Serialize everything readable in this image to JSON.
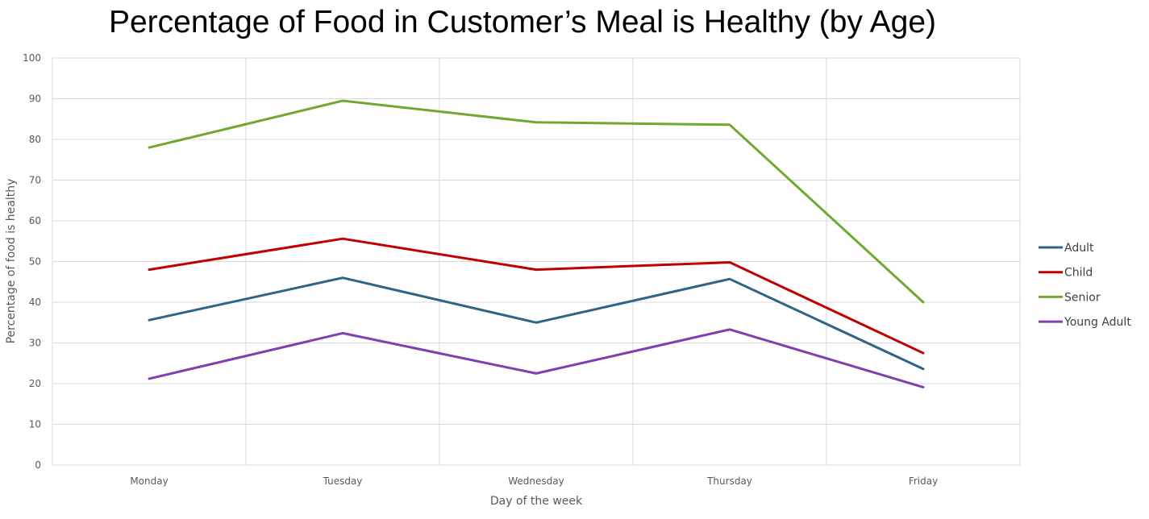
{
  "chart_data": {
    "type": "line",
    "title": "Percentage of Food in Customer’s Meal is Healthy (by Age)",
    "xlabel": "Day of the week",
    "ylabel": "Percentage of food is healthy",
    "categories": [
      "Monday",
      "Tuesday",
      "Wednesday",
      "Thursday",
      "Friday"
    ],
    "ylim": [
      0,
      100
    ],
    "yticks": [
      0,
      10,
      20,
      30,
      40,
      50,
      60,
      70,
      80,
      90,
      100
    ],
    "grid": true,
    "legend_position": "right",
    "series": [
      {
        "name": "Adult",
        "color": "#2E6584",
        "values": [
          35.6,
          46,
          35,
          45.7,
          23.6
        ]
      },
      {
        "name": "Child",
        "color": "#C00000",
        "values": [
          48,
          55.6,
          48,
          49.8,
          27.5
        ]
      },
      {
        "name": "Senior",
        "color": "#70A832",
        "values": [
          78,
          89.5,
          84.2,
          83.6,
          40
        ]
      },
      {
        "name": "Young Adult",
        "color": "#7F3FB0",
        "values": [
          21.2,
          32.4,
          22.5,
          33.3,
          19.1
        ]
      }
    ]
  }
}
